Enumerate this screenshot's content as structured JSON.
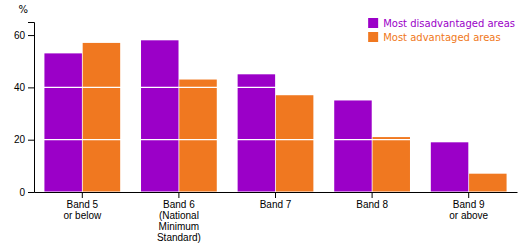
{
  "chart_data": {
    "type": "bar",
    "categories": [
      "Band 5\nor below",
      "Band 6\n(National\nMinimum\nStandard)",
      "Band 7",
      "Band 8",
      "Band 9\nor above"
    ],
    "series": [
      {
        "name": "Most disadvantaged areas",
        "color": "#9B00C8",
        "values": [
          53,
          58,
          45,
          35,
          19
        ]
      },
      {
        "name": "Most advantaged areas",
        "color": "#F07820",
        "values": [
          57,
          43,
          37,
          21,
          7
        ]
      }
    ],
    "ylabel": "%",
    "ylim": [
      0,
      65
    ],
    "yticks": [
      0,
      20,
      40,
      60
    ],
    "grid": true,
    "legend": "upper right"
  }
}
